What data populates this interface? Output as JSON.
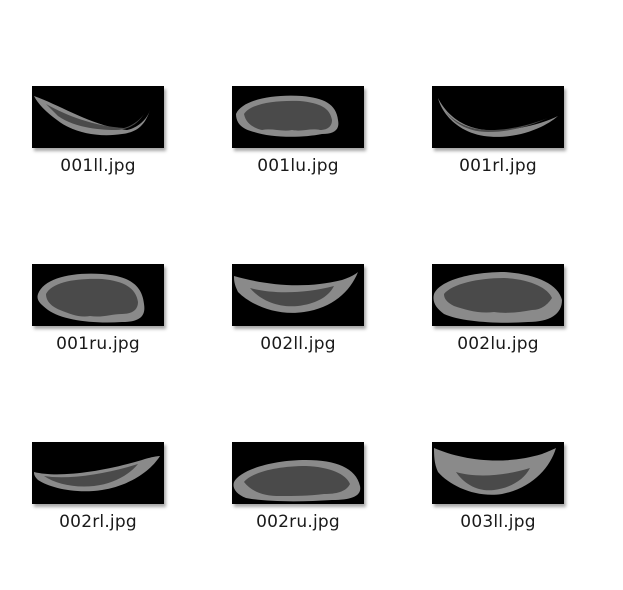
{
  "files": [
    {
      "name": "001ll.jpg",
      "thumbnail": "shape-icon-001ll"
    },
    {
      "name": "001lu.jpg",
      "thumbnail": "shape-icon-001lu"
    },
    {
      "name": "001rl.jpg",
      "thumbnail": "shape-icon-001rl"
    },
    {
      "name": "001ru.jpg",
      "thumbnail": "shape-icon-001ru"
    },
    {
      "name": "002ll.jpg",
      "thumbnail": "shape-icon-002ll"
    },
    {
      "name": "002lu.jpg",
      "thumbnail": "shape-icon-002lu"
    },
    {
      "name": "002rl.jpg",
      "thumbnail": "shape-icon-002rl"
    },
    {
      "name": "002ru.jpg",
      "thumbnail": "shape-icon-002ru"
    },
    {
      "name": "003ll.jpg",
      "thumbnail": "shape-icon-003ll"
    }
  ],
  "colors": {
    "thumbnail_background": "#000000",
    "outer_shape": "#8a8a8a",
    "inner_shape": "#4a4a4a",
    "label_text": "#1a1a1a"
  }
}
